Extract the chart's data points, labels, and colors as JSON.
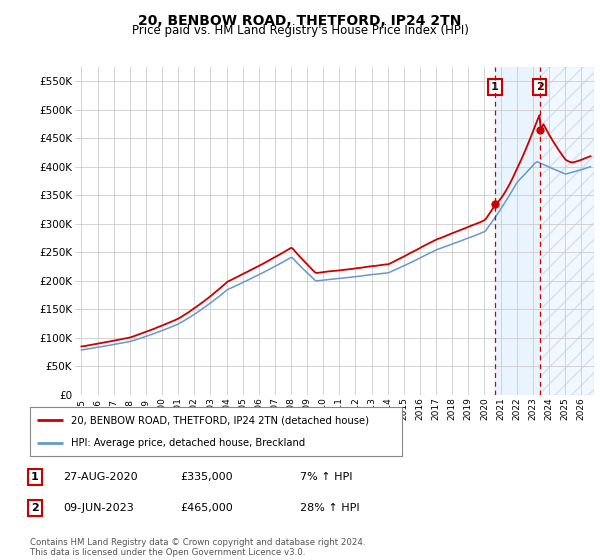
{
  "title": "20, BENBOW ROAD, THETFORD, IP24 2TN",
  "subtitle": "Price paid vs. HM Land Registry's House Price Index (HPI)",
  "ylim": [
    0,
    575000
  ],
  "yticks": [
    0,
    50000,
    100000,
    150000,
    200000,
    250000,
    300000,
    350000,
    400000,
    450000,
    500000,
    550000
  ],
  "ytick_labels": [
    "£0",
    "£50K",
    "£100K",
    "£150K",
    "£200K",
    "£250K",
    "£300K",
    "£350K",
    "£400K",
    "£450K",
    "£500K",
    "£550K"
  ],
  "xlim_start": 1994.6,
  "xlim_end": 2026.8,
  "xticks": [
    1995,
    1996,
    1997,
    1998,
    1999,
    2000,
    2001,
    2002,
    2003,
    2004,
    2005,
    2006,
    2007,
    2008,
    2009,
    2010,
    2011,
    2012,
    2013,
    2014,
    2015,
    2016,
    2017,
    2018,
    2019,
    2020,
    2021,
    2022,
    2023,
    2024,
    2025,
    2026
  ],
  "red_line_color": "#cc0000",
  "blue_line_color": "#6699cc",
  "shade_color": "#ddeeff",
  "annotation_box_color": "#cc0000",
  "grid_color": "#cccccc",
  "background_color": "#ffffff",
  "legend_label_red": "20, BENBOW ROAD, THETFORD, IP24 2TN (detached house)",
  "legend_label_blue": "HPI: Average price, detached house, Breckland",
  "sale1_label": "1",
  "sale1_date": "27-AUG-2020",
  "sale1_price": "£335,000",
  "sale1_hpi": "7% ↑ HPI",
  "sale1_year": 2020.65,
  "sale1_value": 335000,
  "sale2_label": "2",
  "sale2_date": "09-JUN-2023",
  "sale2_price": "£465,000",
  "sale2_hpi": "28% ↑ HPI",
  "sale2_year": 2023.44,
  "sale2_value": 465000,
  "footer": "Contains HM Land Registry data © Crown copyright and database right 2024.\nThis data is licensed under the Open Government Licence v3.0.",
  "hpi_base_value": 52000,
  "seed": 42
}
